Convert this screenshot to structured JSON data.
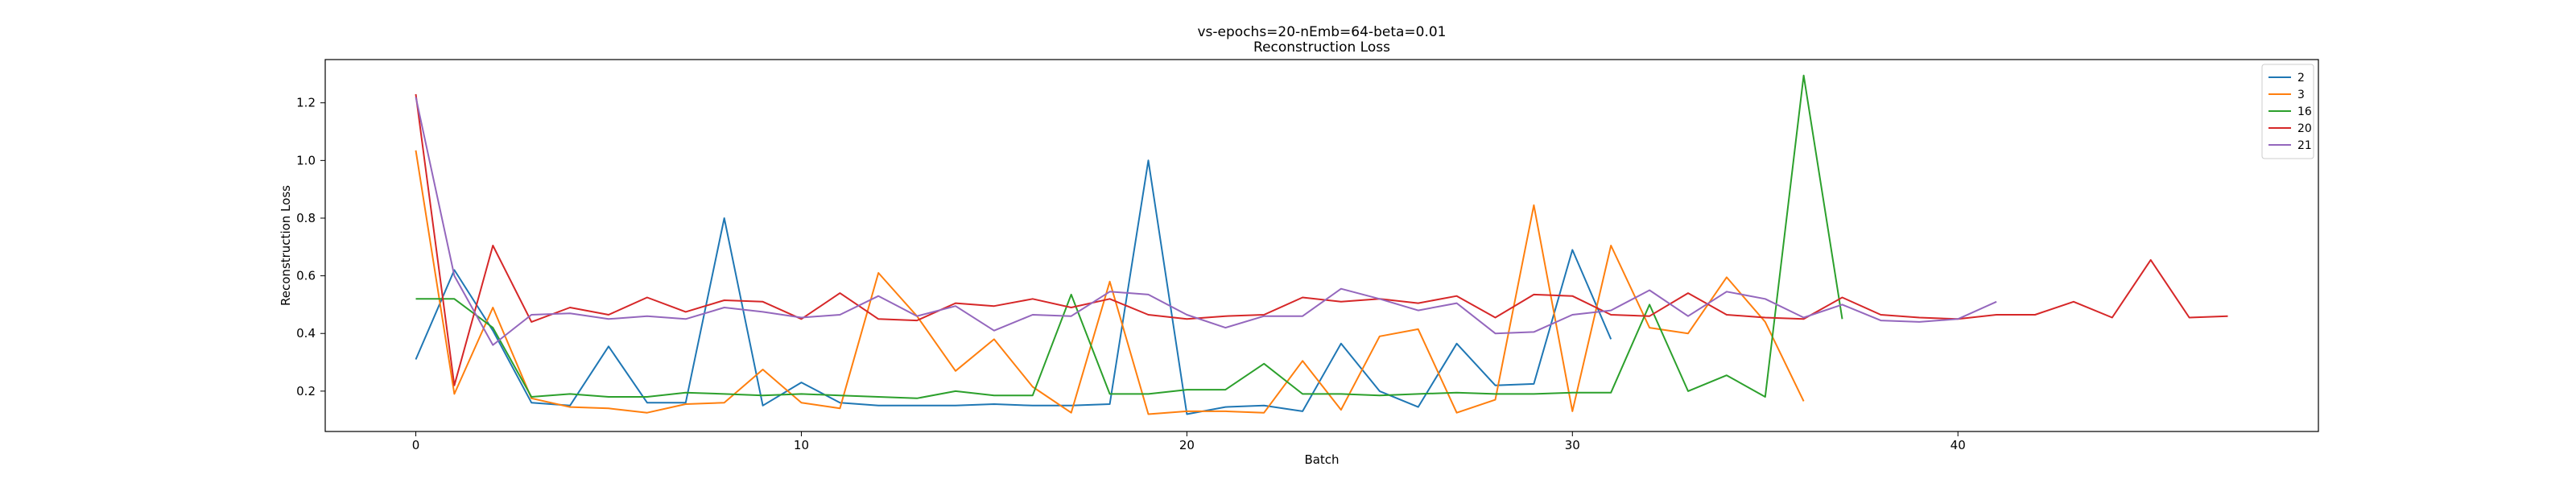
{
  "chart_data": {
    "type": "line",
    "title": "vs-epochs=20-nEmb=64-beta=0.01",
    "subtitle": "Reconstruction Loss",
    "xlabel": "Batch",
    "ylabel": "Reconstruction Loss",
    "xlim": [
      -2.35,
      49.35
    ],
    "ylim": [
      0.06,
      1.35
    ],
    "xticks": [
      0,
      10,
      20,
      30,
      40
    ],
    "yticks": [
      0.2,
      0.4,
      0.6,
      0.8,
      1.0,
      1.2
    ],
    "ytick_labels": [
      "0.2",
      "0.4",
      "0.6",
      "0.8",
      "1.0",
      "1.2"
    ],
    "grid": false,
    "legend_position": "top-right",
    "series": [
      {
        "name": "2",
        "color": "#1f77b4",
        "values": [
          0.31,
          0.62,
          0.41,
          0.16,
          0.15,
          0.355,
          0.16,
          0.16,
          0.8,
          0.15,
          0.23,
          0.16,
          0.15,
          0.15,
          0.15,
          0.155,
          0.15,
          0.15,
          0.155,
          1.0,
          0.12,
          0.145,
          0.15,
          0.13,
          0.365,
          0.2,
          0.145,
          0.365,
          0.22,
          0.225,
          0.69,
          0.38
        ]
      },
      {
        "name": "3",
        "color": "#ff7f0e",
        "values": [
          1.035,
          0.19,
          0.49,
          0.175,
          0.145,
          0.14,
          0.125,
          0.155,
          0.16,
          0.275,
          0.16,
          0.14,
          0.61,
          0.46,
          0.27,
          0.38,
          0.215,
          0.125,
          0.58,
          0.12,
          0.13,
          0.13,
          0.125,
          0.305,
          0.135,
          0.39,
          0.415,
          0.125,
          0.17,
          0.845,
          0.13,
          0.705,
          0.42,
          0.4,
          0.595,
          0.44,
          0.165
        ]
      },
      {
        "name": "16",
        "color": "#2ca02c",
        "values": [
          0.52,
          0.52,
          0.42,
          0.18,
          0.19,
          0.18,
          0.18,
          0.195,
          0.19,
          0.185,
          0.19,
          0.185,
          0.18,
          0.175,
          0.2,
          0.185,
          0.185,
          0.535,
          0.19,
          0.19,
          0.205,
          0.205,
          0.295,
          0.19,
          0.19,
          0.185,
          0.19,
          0.195,
          0.19,
          0.19,
          0.195,
          0.195,
          0.5,
          0.2,
          0.255,
          0.18,
          1.295,
          0.45
        ]
      },
      {
        "name": "20",
        "color": "#d62728",
        "values": [
          1.23,
          0.22,
          0.705,
          0.44,
          0.49,
          0.465,
          0.525,
          0.475,
          0.515,
          0.51,
          0.45,
          0.54,
          0.45,
          0.445,
          0.505,
          0.495,
          0.52,
          0.49,
          0.52,
          0.465,
          0.45,
          0.46,
          0.465,
          0.525,
          0.51,
          0.52,
          0.505,
          0.53,
          0.455,
          0.535,
          0.53,
          0.465,
          0.46,
          0.54,
          0.465,
          0.455,
          0.45,
          0.525,
          0.465,
          0.455,
          0.45,
          0.465,
          0.465,
          0.51,
          0.455,
          0.655,
          0.455,
          0.46
        ]
      },
      {
        "name": "21",
        "color": "#9467bd",
        "values": [
          1.22,
          0.6,
          0.36,
          0.465,
          0.47,
          0.45,
          0.46,
          0.45,
          0.49,
          0.475,
          0.455,
          0.465,
          0.53,
          0.46,
          0.495,
          0.41,
          0.465,
          0.46,
          0.545,
          0.535,
          0.465,
          0.42,
          0.46,
          0.46,
          0.555,
          0.52,
          0.48,
          0.505,
          0.4,
          0.405,
          0.465,
          0.48,
          0.55,
          0.46,
          0.545,
          0.52,
          0.455,
          0.5,
          0.445,
          0.44,
          0.45,
          0.51
        ]
      }
    ]
  }
}
